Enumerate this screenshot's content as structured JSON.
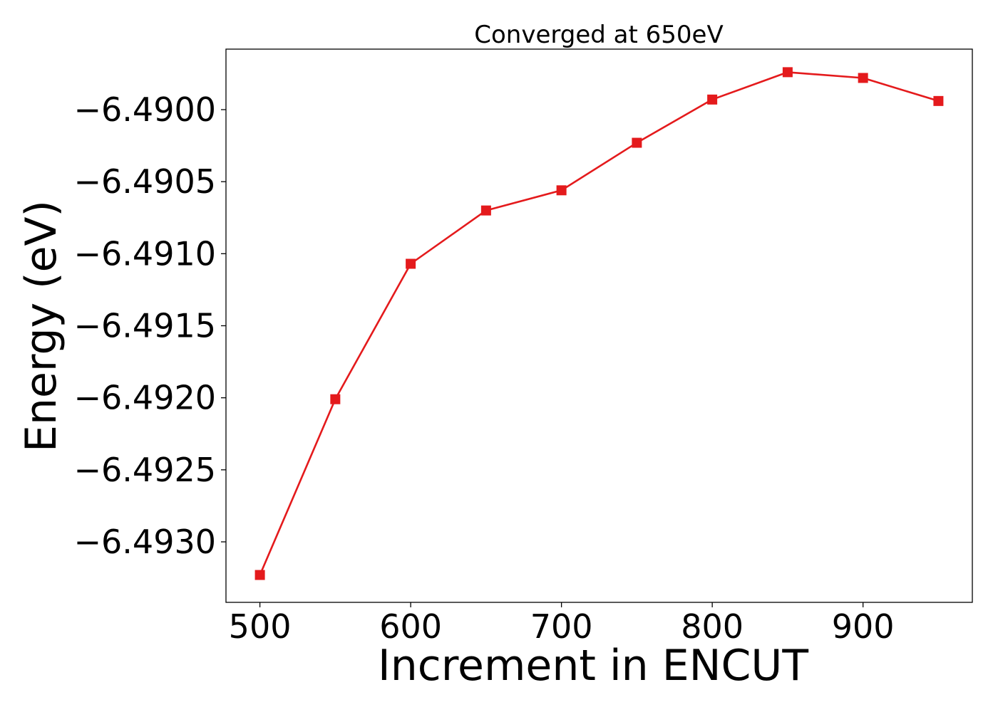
{
  "chart_data": {
    "type": "line",
    "title": "Converged at 650eV",
    "xlabel": "Increment in ENCUT",
    "ylabel": "Energy (eV)",
    "xlim": [
      477.5,
      972.5
    ],
    "ylim": [
      -6.49342,
      -6.48958
    ],
    "xticks": [
      500,
      600,
      700,
      800,
      900
    ],
    "xtick_labels": [
      "500",
      "600",
      "700",
      "800",
      "900"
    ],
    "yticks": [
      -6.493,
      -6.4925,
      -6.492,
      -6.4915,
      -6.491,
      -6.4905,
      -6.49
    ],
    "ytick_labels": [
      "−6.4930",
      "−6.4925",
      "−6.4920",
      "−6.4915",
      "−6.4910",
      "−6.4905",
      "−6.4900"
    ],
    "grid": false,
    "series": [
      {
        "color": "#e41a1c",
        "marker": "square",
        "x": [
          500,
          550,
          600,
          650,
          700,
          750,
          800,
          850,
          900,
          950
        ],
        "y": [
          -6.49323,
          -6.49201,
          -6.49107,
          -6.4907,
          -6.49056,
          -6.49023,
          -6.48993,
          -6.48974,
          -6.48978,
          -6.48994
        ]
      }
    ]
  }
}
